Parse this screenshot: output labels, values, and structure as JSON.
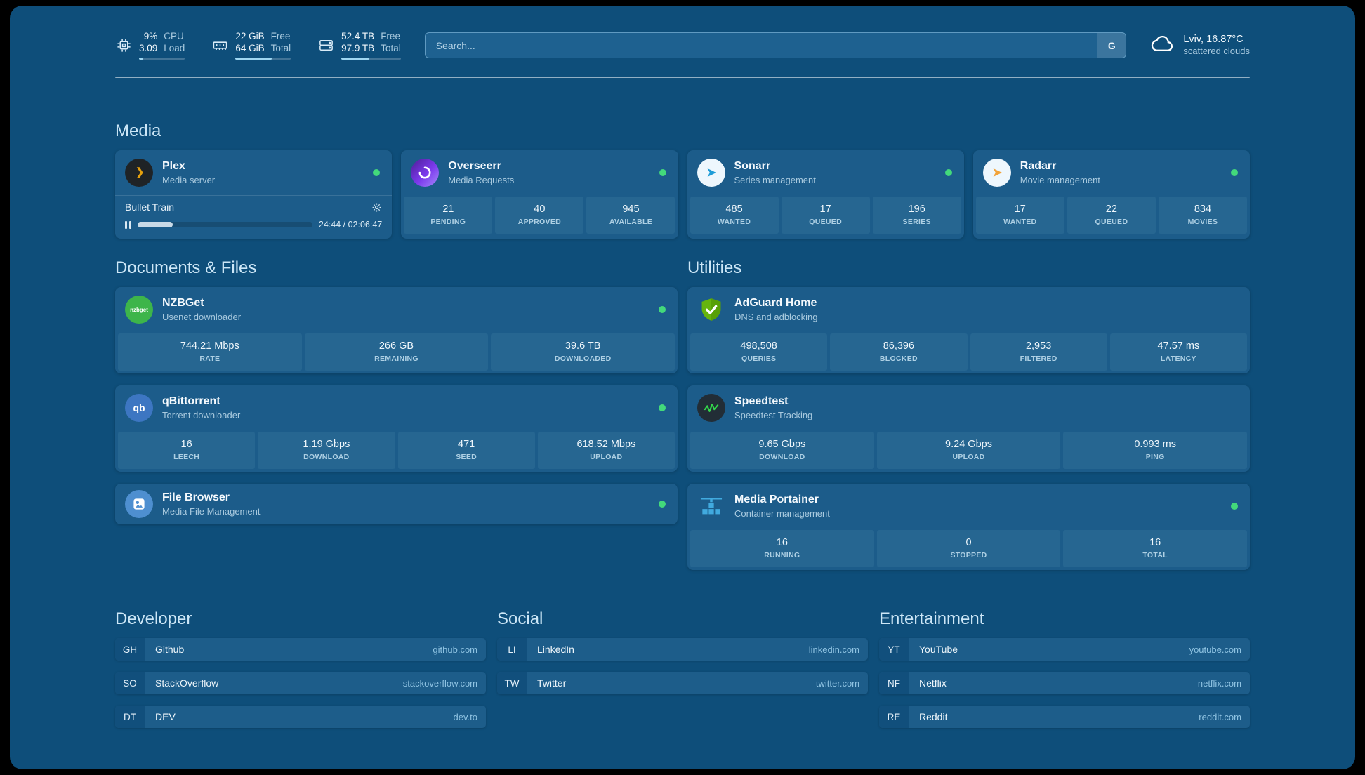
{
  "theme": {
    "background": "#0e4e7a",
    "card": "#1c5c8a",
    "stat_tile": "#266691",
    "status_green": "#43d97b",
    "accent": "#9fd7f2"
  },
  "header": {
    "resources": [
      {
        "icon": "cpu-icon",
        "value_top": "9%",
        "value_bottom": "3.09",
        "label_top": "CPU",
        "label_bottom": "Load",
        "progress_pct": 9
      },
      {
        "icon": "memory-icon",
        "value_top": "22 GiB",
        "value_bottom": "64 GiB",
        "label_top": "Free",
        "label_bottom": "Total",
        "progress_pct": 66
      },
      {
        "icon": "disk-icon",
        "value_top": "52.4 TB",
        "value_bottom": "97.9 TB",
        "label_top": "Free",
        "label_bottom": "Total",
        "progress_pct": 47
      }
    ],
    "search": {
      "placeholder": "Search...",
      "provider_button": "G"
    },
    "weather": {
      "icon": "cloud-icon",
      "location": "Lviv, 16.87°C",
      "condition": "scattered clouds"
    }
  },
  "sections": {
    "media": {
      "title": "Media",
      "cards": [
        {
          "name": "Plex",
          "subtitle": "Media server",
          "icon": "plex-icon",
          "online": true,
          "now_playing": {
            "title": "Bullet Train",
            "time": "24:44 / 02:06:47",
            "progress_pct": 20
          }
        },
        {
          "name": "Overseerr",
          "subtitle": "Media Requests",
          "icon": "overseerr-icon",
          "online": true,
          "stats": [
            {
              "value": "21",
              "label": "PENDING"
            },
            {
              "value": "40",
              "label": "APPROVED"
            },
            {
              "value": "945",
              "label": "AVAILABLE"
            }
          ]
        },
        {
          "name": "Sonarr",
          "subtitle": "Series management",
          "icon": "sonarr-icon",
          "online": true,
          "stats": [
            {
              "value": "485",
              "label": "WANTED"
            },
            {
              "value": "17",
              "label": "QUEUED"
            },
            {
              "value": "196",
              "label": "SERIES"
            }
          ]
        },
        {
          "name": "Radarr",
          "subtitle": "Movie management",
          "icon": "radarr-icon",
          "online": true,
          "stats": [
            {
              "value": "17",
              "label": "WANTED"
            },
            {
              "value": "22",
              "label": "QUEUED"
            },
            {
              "value": "834",
              "label": "MOVIES"
            }
          ]
        }
      ]
    },
    "documents": {
      "title": "Documents & Files",
      "cards": [
        {
          "name": "NZBGet",
          "subtitle": "Usenet downloader",
          "icon": "nzbget-icon",
          "icon_text": "nzbget",
          "online": true,
          "stats": [
            {
              "value": "744.21 Mbps",
              "label": "RATE"
            },
            {
              "value": "266 GB",
              "label": "REMAINING"
            },
            {
              "value": "39.6 TB",
              "label": "DOWNLOADED"
            }
          ]
        },
        {
          "name": "qBittorrent",
          "subtitle": "Torrent downloader",
          "icon": "qbittorrent-icon",
          "icon_text": "qb",
          "online": true,
          "stats": [
            {
              "value": "16",
              "label": "LEECH"
            },
            {
              "value": "1.19 Gbps",
              "label": "DOWNLOAD"
            },
            {
              "value": "471",
              "label": "SEED"
            },
            {
              "value": "618.52 Mbps",
              "label": "UPLOAD"
            }
          ]
        },
        {
          "name": "File Browser",
          "subtitle": "Media File Management",
          "icon": "filebrowser-icon",
          "online": true,
          "stats": []
        }
      ]
    },
    "utilities": {
      "title": "Utilities",
      "cards": [
        {
          "name": "AdGuard Home",
          "subtitle": "DNS and adblocking",
          "icon": "adguard-icon",
          "online": false,
          "stats": [
            {
              "value": "498,508",
              "label": "QUERIES"
            },
            {
              "value": "86,396",
              "label": "BLOCKED"
            },
            {
              "value": "2,953",
              "label": "FILTERED"
            },
            {
              "value": "47.57 ms",
              "label": "LATENCY"
            }
          ]
        },
        {
          "name": "Speedtest",
          "subtitle": "Speedtest Tracking",
          "icon": "speedtest-icon",
          "online": false,
          "stats": [
            {
              "value": "9.65 Gbps",
              "label": "DOWNLOAD"
            },
            {
              "value": "9.24 Gbps",
              "label": "UPLOAD"
            },
            {
              "value": "0.993 ms",
              "label": "PING"
            }
          ]
        },
        {
          "name": "Media Portainer",
          "subtitle": "Container management",
          "icon": "portainer-icon",
          "online": true,
          "stats": [
            {
              "value": "16",
              "label": "RUNNING"
            },
            {
              "value": "0",
              "label": "STOPPED"
            },
            {
              "value": "16",
              "label": "TOTAL"
            }
          ]
        }
      ]
    }
  },
  "bookmarks": [
    {
      "title": "Developer",
      "items": [
        {
          "abbr": "GH",
          "name": "Github",
          "domain": "github.com"
        },
        {
          "abbr": "SO",
          "name": "StackOverflow",
          "domain": "stackoverflow.com"
        },
        {
          "abbr": "DT",
          "name": "DEV",
          "domain": "dev.to"
        }
      ]
    },
    {
      "title": "Social",
      "items": [
        {
          "abbr": "LI",
          "name": "LinkedIn",
          "domain": "linkedin.com"
        },
        {
          "abbr": "TW",
          "name": "Twitter",
          "domain": "twitter.com"
        }
      ]
    },
    {
      "title": "Entertainment",
      "items": [
        {
          "abbr": "YT",
          "name": "YouTube",
          "domain": "youtube.com"
        },
        {
          "abbr": "NF",
          "name": "Netflix",
          "domain": "netflix.com"
        },
        {
          "abbr": "RE",
          "name": "Reddit",
          "domain": "reddit.com"
        }
      ]
    }
  ]
}
